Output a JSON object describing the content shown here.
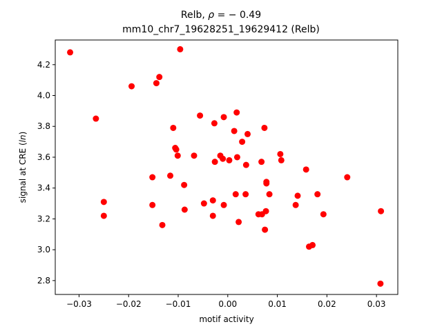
{
  "chart_data": {
    "type": "scatter",
    "title_prefix": "Relb, ",
    "title_rho_symbol": "ρ",
    "title_rho_value": " = − 0.49",
    "subtitle": "mm10_chr7_19628251_19629412 (Relb)",
    "xlabel": "motif activity",
    "ylabel_prefix": "signal at CRE (",
    "ylabel_italic": "ln",
    "ylabel_suffix": ")",
    "xlim": [
      -0.0348,
      0.0343
    ],
    "ylim": [
      2.71,
      4.36
    ],
    "xticks": [
      -0.03,
      -0.02,
      -0.01,
      0.0,
      0.01,
      0.02,
      0.03
    ],
    "xtick_labels": [
      "−0.03",
      "−0.02",
      "−0.01",
      "0.00",
      "0.01",
      "0.02",
      "0.03"
    ],
    "yticks": [
      2.8,
      3.0,
      3.2,
      3.4,
      3.6,
      3.8,
      4.0,
      4.2
    ],
    "ytick_labels": [
      "2.8",
      "3.0",
      "3.2",
      "3.4",
      "3.6",
      "3.8",
      "4.0",
      "4.2"
    ],
    "marker_color": "#ff0000",
    "grid": false,
    "points": [
      {
        "x": -0.0318,
        "y": 4.28
      },
      {
        "x": -0.0266,
        "y": 3.85
      },
      {
        "x": -0.025,
        "y": 3.31
      },
      {
        "x": -0.025,
        "y": 3.22
      },
      {
        "x": -0.0194,
        "y": 4.06
      },
      {
        "x": -0.0152,
        "y": 3.47
      },
      {
        "x": -0.0152,
        "y": 3.29
      },
      {
        "x": -0.0144,
        "y": 4.08
      },
      {
        "x": -0.0138,
        "y": 4.12
      },
      {
        "x": -0.0132,
        "y": 3.16
      },
      {
        "x": -0.0116,
        "y": 3.48
      },
      {
        "x": -0.011,
        "y": 3.79
      },
      {
        "x": -0.0106,
        "y": 3.66
      },
      {
        "x": -0.0104,
        "y": 3.65
      },
      {
        "x": -0.0101,
        "y": 3.61
      },
      {
        "x": -0.0096,
        "y": 4.3
      },
      {
        "x": -0.0088,
        "y": 3.42
      },
      {
        "x": -0.0087,
        "y": 3.26
      },
      {
        "x": -0.0068,
        "y": 3.61
      },
      {
        "x": -0.0056,
        "y": 3.87
      },
      {
        "x": -0.0048,
        "y": 3.3
      },
      {
        "x": -0.003,
        "y": 3.32
      },
      {
        "x": -0.003,
        "y": 3.22
      },
      {
        "x": -0.0027,
        "y": 3.82
      },
      {
        "x": -0.0026,
        "y": 3.57
      },
      {
        "x": -0.0015,
        "y": 3.61
      },
      {
        "x": -0.001,
        "y": 3.59
      },
      {
        "x": -0.0008,
        "y": 3.86
      },
      {
        "x": -0.0008,
        "y": 3.29
      },
      {
        "x": 0.0003,
        "y": 3.58
      },
      {
        "x": 0.0013,
        "y": 3.77
      },
      {
        "x": 0.0016,
        "y": 3.36
      },
      {
        "x": 0.0018,
        "y": 3.89
      },
      {
        "x": 0.0019,
        "y": 3.6
      },
      {
        "x": 0.0022,
        "y": 3.18
      },
      {
        "x": 0.0029,
        "y": 3.7
      },
      {
        "x": 0.0036,
        "y": 3.36
      },
      {
        "x": 0.0037,
        "y": 3.55
      },
      {
        "x": 0.004,
        "y": 3.75
      },
      {
        "x": 0.0062,
        "y": 3.23
      },
      {
        "x": 0.0068,
        "y": 3.57
      },
      {
        "x": 0.0069,
        "y": 3.23
      },
      {
        "x": 0.0074,
        "y": 3.79
      },
      {
        "x": 0.0075,
        "y": 3.13
      },
      {
        "x": 0.0077,
        "y": 3.25
      },
      {
        "x": 0.0078,
        "y": 3.44
      },
      {
        "x": 0.0078,
        "y": 3.43
      },
      {
        "x": 0.0084,
        "y": 3.36
      },
      {
        "x": 0.0106,
        "y": 3.62
      },
      {
        "x": 0.0108,
        "y": 3.58
      },
      {
        "x": 0.0137,
        "y": 3.29
      },
      {
        "x": 0.0141,
        "y": 3.35
      },
      {
        "x": 0.0158,
        "y": 3.52
      },
      {
        "x": 0.0164,
        "y": 3.02
      },
      {
        "x": 0.0171,
        "y": 3.03
      },
      {
        "x": 0.0181,
        "y": 3.36
      },
      {
        "x": 0.0193,
        "y": 3.23
      },
      {
        "x": 0.0241,
        "y": 3.47
      },
      {
        "x": 0.0308,
        "y": 2.78
      },
      {
        "x": 0.0309,
        "y": 3.25
      }
    ]
  }
}
